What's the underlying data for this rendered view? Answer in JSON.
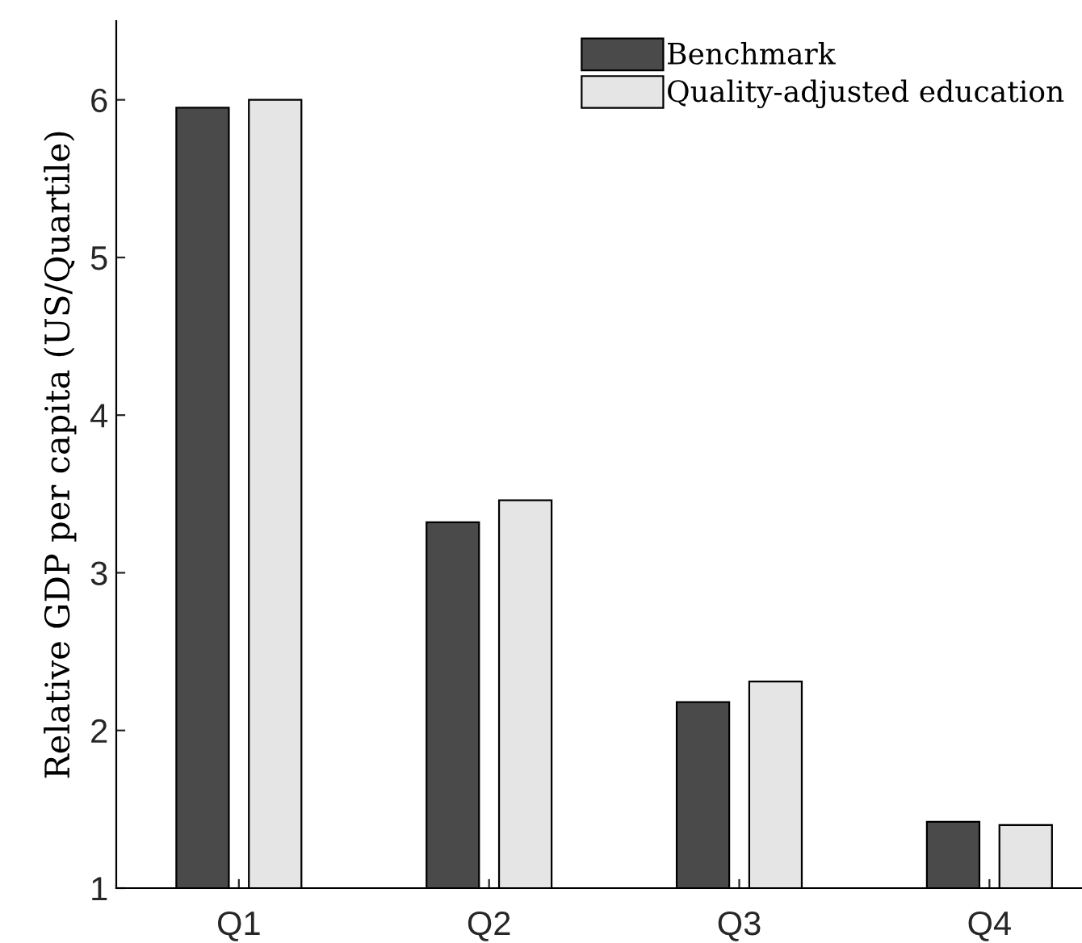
{
  "chart_data": {
    "type": "bar",
    "ylabel": "Relative GDP per capita (US/Quartile)",
    "categories": [
      "Q1",
      "Q2",
      "Q3",
      "Q4"
    ],
    "series": [
      {
        "name": "Benchmark",
        "color": "#4a4a4a",
        "values": [
          5.95,
          3.32,
          2.18,
          1.42
        ]
      },
      {
        "name": "Quality-adjusted education",
        "color": "#e5e5e5",
        "values": [
          6.0,
          3.46,
          2.31,
          1.4
        ]
      }
    ],
    "ylim": [
      1,
      6.5
    ],
    "yticks": [
      1,
      2,
      3,
      4,
      5,
      6
    ],
    "grid": false,
    "legend": "top right"
  }
}
